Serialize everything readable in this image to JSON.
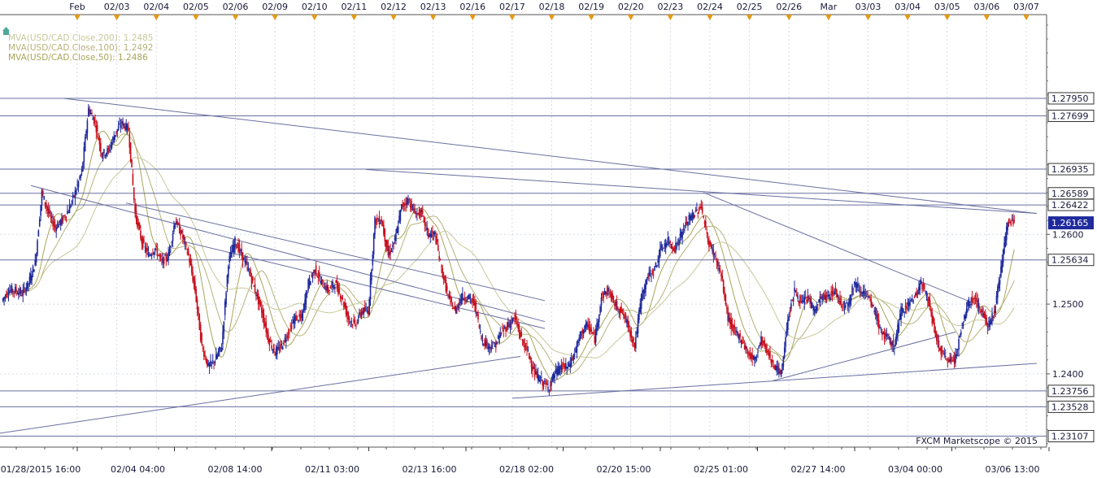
{
  "chart_data": {
    "type": "candlestick",
    "instrument": "USD/CAD",
    "y_range": [
      1.2295,
      1.2915
    ],
    "price_scale_ticks": [
      1.26,
      1.25,
      1.24
    ],
    "top_date_labels": [
      "Feb",
      "02/03",
      "02/04",
      "02/05",
      "02/06",
      "02/09",
      "02/10",
      "02/11",
      "02/12",
      "02/13",
      "02/16",
      "02/17",
      "02/18",
      "02/19",
      "02/20",
      "02/23",
      "02/24",
      "02/25",
      "02/26",
      "Mar",
      "03/03",
      "03/04",
      "03/05",
      "03/06",
      "03/07"
    ],
    "bottom_time_labels": [
      "01/28/2015 16:00",
      "02/04 04:00",
      "02/08 14:00",
      "02/11 03:00",
      "02/13 16:00",
      "02/18 02:00",
      "02/20 15:00",
      "02/25 01:00",
      "02/27 14:00",
      "03/04 00:00",
      "03/06 13:00"
    ],
    "level_lines": [
      {
        "label": "1.27950",
        "value": 1.2795
      },
      {
        "label": "1.27699",
        "value": 1.27699
      },
      {
        "label": "1.26935",
        "value": 1.26935
      },
      {
        "label": "1.26589",
        "value": 1.26589
      },
      {
        "label": "1.26422",
        "value": 1.26422
      },
      {
        "label": "1.25634",
        "value": 1.25634
      },
      {
        "label": "1.23756",
        "value": 1.23756
      },
      {
        "label": "1.23528",
        "value": 1.23528
      },
      {
        "label": "1.23107",
        "value": 1.23107
      }
    ],
    "current_price": {
      "label": "1.26165",
      "value": 1.26165
    },
    "indicators": [
      {
        "label": "MVA(USD/CAD.Close,200): 1.2485",
        "color": "#c8c89a"
      },
      {
        "label": "MVA(USD/CAD.Close,100): 1.2492",
        "color": "#b6b27a"
      },
      {
        "label": "MVA(USD/CAD.Close,50): 1.2486",
        "color": "#a8a458"
      }
    ],
    "candle_color_up": "#1f2a9c",
    "candle_color_down": "#c8101e",
    "price_path": [
      1.2505,
      1.252,
      1.252,
      1.2515,
      1.253,
      1.256,
      1.266,
      1.263,
      1.261,
      1.262,
      1.2635,
      1.266,
      1.269,
      1.278,
      1.276,
      1.2715,
      1.272,
      1.2745,
      1.276,
      1.275,
      1.263,
      1.259,
      1.257,
      1.258,
      1.256,
      1.257,
      1.262,
      1.26,
      1.257,
      1.252,
      1.244,
      1.241,
      1.242,
      1.244,
      1.256,
      1.259,
      1.257,
      1.255,
      1.252,
      1.249,
      1.245,
      1.243,
      1.244,
      1.246,
      1.248,
      1.248,
      1.253,
      1.255,
      1.253,
      1.252,
      1.253,
      1.251,
      1.248,
      1.247,
      1.249,
      1.249,
      1.262,
      1.262,
      1.257,
      1.259,
      1.264,
      1.265,
      1.263,
      1.263,
      1.26,
      1.26,
      1.255,
      1.251,
      1.249,
      1.251,
      1.251,
      1.25,
      1.245,
      1.244,
      1.244,
      1.246,
      1.247,
      1.248,
      1.245,
      1.243,
      1.24,
      1.239,
      1.238,
      1.24,
      1.241,
      1.241,
      1.243,
      1.246,
      1.247,
      1.245,
      1.251,
      1.252,
      1.25,
      1.249,
      1.247,
      1.244,
      1.251,
      1.254,
      1.255,
      1.258,
      1.259,
      1.258,
      1.26,
      1.262,
      1.263,
      1.264,
      1.259,
      1.257,
      1.254,
      1.248,
      1.246,
      1.245,
      1.243,
      1.242,
      1.245,
      1.243,
      1.241,
      1.24,
      1.248,
      1.252,
      1.25,
      1.251,
      1.249,
      1.251,
      1.251,
      1.252,
      1.25,
      1.25,
      1.253,
      1.252,
      1.251,
      1.249,
      1.246,
      1.245,
      1.244,
      1.249,
      1.25,
      1.251,
      1.253,
      1.251,
      1.246,
      1.243,
      1.242,
      1.242,
      1.246,
      1.25,
      1.251,
      1.249,
      1.247,
      1.249,
      1.255,
      1.262,
      1.2615
    ]
  }
}
